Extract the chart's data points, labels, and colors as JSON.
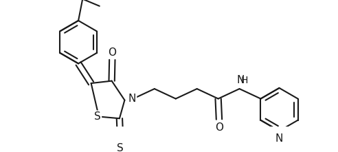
{
  "background_color": "#ffffff",
  "line_color": "#1a1a1a",
  "line_width": 1.5,
  "font_size": 10,
  "fig_width": 4.92,
  "fig_height": 2.21,
  "dpi": 100,
  "xlim": [
    0,
    9.84
  ],
  "ylim": [
    0,
    4.42
  ]
}
